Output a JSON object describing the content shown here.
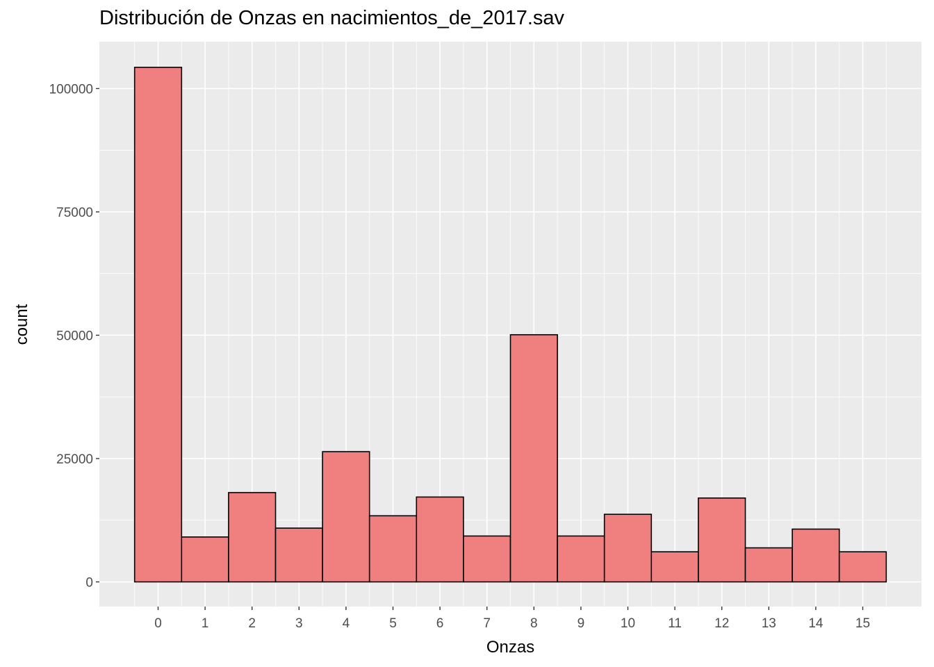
{
  "chart_data": {
    "type": "bar",
    "title": "Distribución de Onzas en nacimientos_de_2017.sav",
    "xlabel": "Onzas",
    "ylabel": "count",
    "categories": [
      "0",
      "1",
      "2",
      "3",
      "4",
      "5",
      "6",
      "7",
      "8",
      "9",
      "10",
      "11",
      "12",
      "13",
      "14",
      "15"
    ],
    "values": [
      104300,
      9100,
      18100,
      10900,
      26400,
      13400,
      17200,
      9300,
      50100,
      9300,
      13700,
      6100,
      17000,
      6900,
      10700,
      6100
    ],
    "ylim": [
      -5000,
      109500
    ],
    "yticks": [
      0,
      25000,
      50000,
      75000,
      100000
    ],
    "ytick_labels": [
      "0",
      "25000",
      "50000",
      "75000",
      "100000"
    ],
    "grid": true,
    "legend": "none",
    "colors": {
      "bar_fill": "#f08080",
      "bar_stroke": "#000000",
      "panel_bg": "#ebebeb",
      "grid": "#ffffff"
    }
  }
}
